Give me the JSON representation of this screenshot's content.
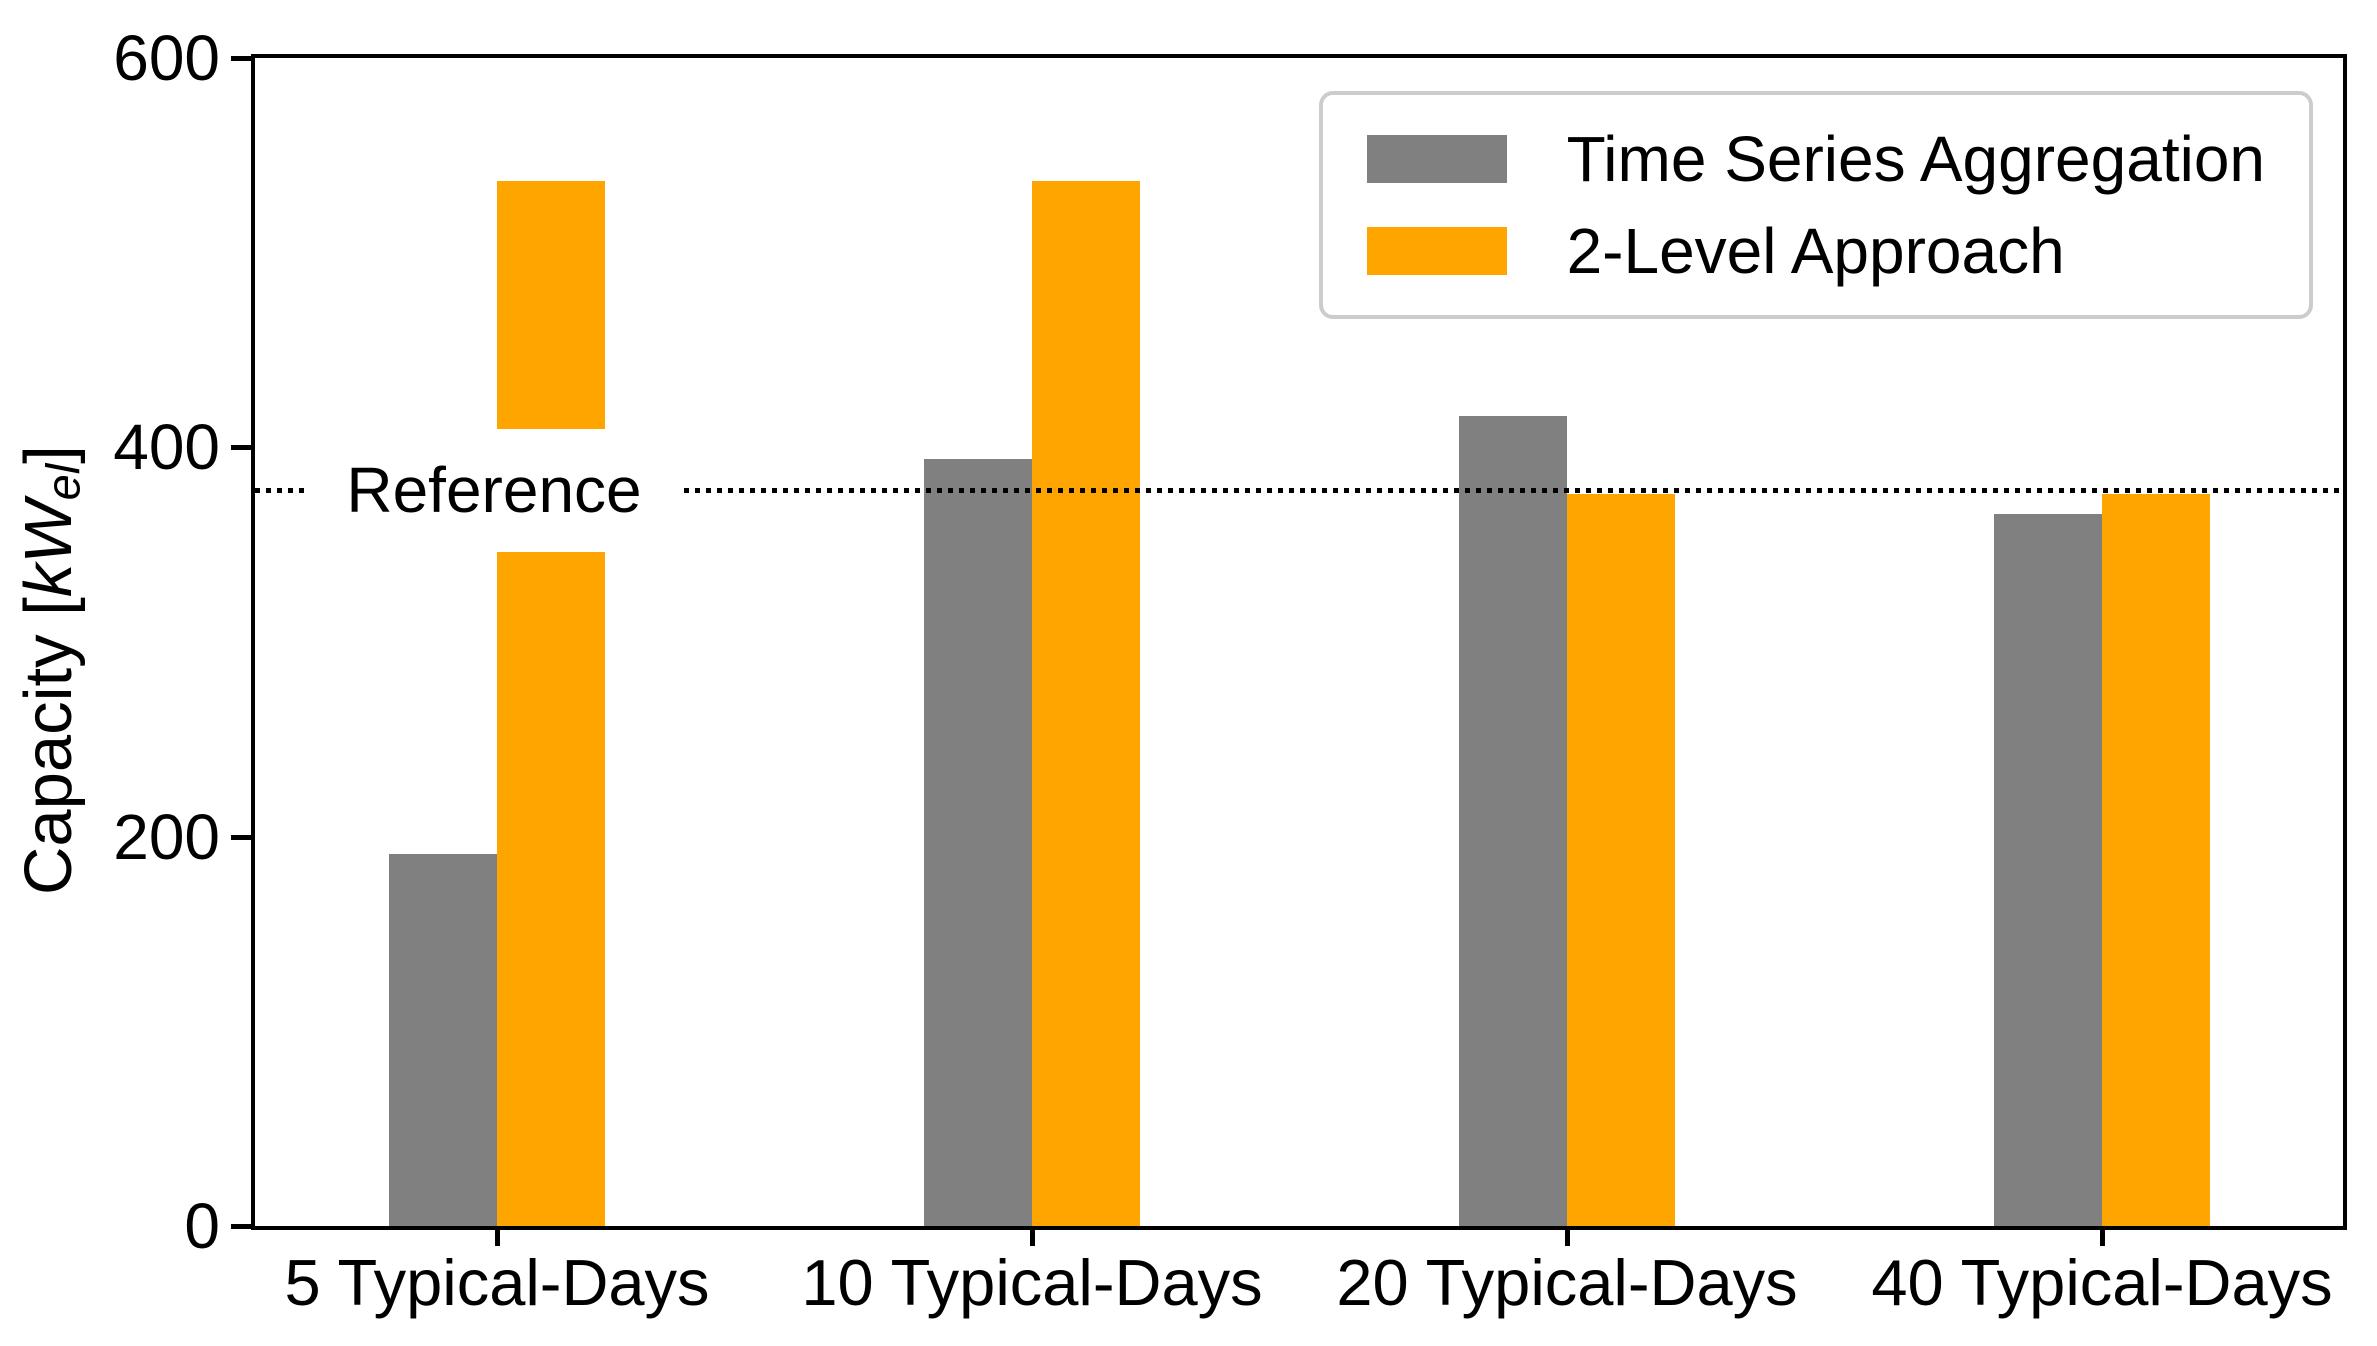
{
  "chart_data": {
    "type": "bar",
    "title": "",
    "categories": [
      "5 Typical-Days",
      "10 Typical-Days",
      "20 Typical-Days",
      "40 Typical-Days"
    ],
    "series": [
      {
        "name": "Time Series Aggregation",
        "color": "#808080",
        "values": [
          191,
          394,
          416,
          366
        ]
      },
      {
        "name": "2-Level Approach",
        "color": "#FFA500",
        "values": [
          537,
          537,
          376,
          376
        ]
      }
    ],
    "reference_line": {
      "label": "Reference",
      "value": 378,
      "style": "dotted",
      "color": "#000000"
    },
    "ylabel": "Capacity [kW_el]",
    "ylabel_parts": {
      "prefix": "Capacity [",
      "symbol": "kW",
      "sub": "el",
      "suffix": "]"
    },
    "xlabel": "",
    "ylim": [
      0,
      600
    ],
    "yticks": [
      0,
      200,
      400,
      600
    ],
    "grid": false,
    "legend_position": "upper right",
    "axis_color": "#000000",
    "legend_border_color": "#cccccc"
  }
}
